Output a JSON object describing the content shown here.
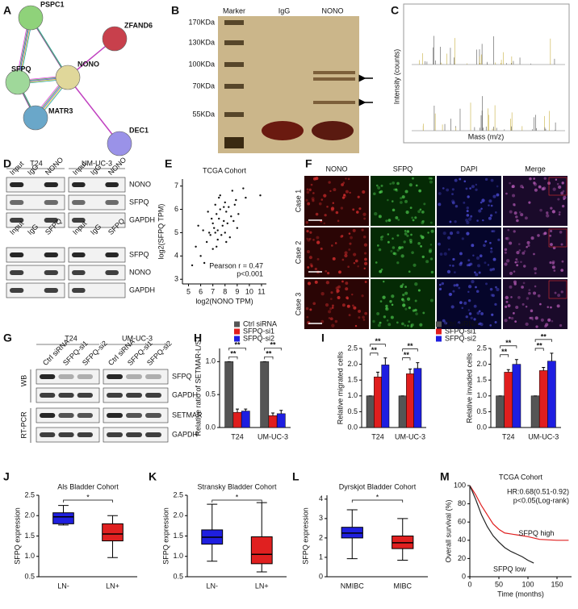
{
  "panels": {
    "labels": [
      "A",
      "B",
      "C",
      "D",
      "E",
      "F",
      "G",
      "H",
      "I",
      "J",
      "K",
      "L",
      "M"
    ]
  },
  "network": {
    "nodes": [
      "PSPC1",
      "ZFAND6",
      "NONO",
      "SFPQ",
      "MATR3",
      "DEC1"
    ]
  },
  "gel": {
    "lanes": [
      "Marker",
      "IgG",
      "NONO"
    ],
    "ladder": [
      "170KDa",
      "130KDa",
      "100KDa",
      "70KDa",
      "55KDa"
    ]
  },
  "spectrum": {
    "ylabel": "Intensity (counts)",
    "xlabel": "Mass (m/z)"
  },
  "coip": {
    "cells": [
      "T24",
      "UM-UC-3"
    ],
    "top": {
      "lanes": [
        "Input",
        "IgG",
        "NONO"
      ],
      "rows": [
        "NONO",
        "SFPQ",
        "GAPDH"
      ]
    },
    "bottom": {
      "lanes": [
        "Input",
        "IgG",
        "SFPQ"
      ],
      "rows": [
        "SFPQ",
        "NONO",
        "GAPDH"
      ]
    }
  },
  "if_stain": {
    "channels": [
      "NONO",
      "SFPQ",
      "DAPI",
      "Merge"
    ],
    "cases": [
      "Case 1",
      "Case 2",
      "Case 3"
    ]
  },
  "knockdown": {
    "cells": [
      "T24",
      "UM-UC-3"
    ],
    "lanes": [
      "Ctrl siRNA",
      "SFPQ-si1",
      "SFPQ-si2"
    ],
    "methods": [
      "WB",
      "RT-PCR"
    ],
    "rows": [
      "SFPQ",
      "GAPDH",
      "SETMAR",
      "GAPDH"
    ]
  },
  "chart_data": [
    {
      "type": "scatter",
      "title": "TCGA Cohort",
      "xlabel": "log2(NONO TPM)",
      "ylabel": "log2(SFPQ TPM)",
      "x": [
        7.5,
        7.8,
        8.1,
        7.2,
        7.0,
        8.3,
        6.8,
        7.6,
        8.5,
        7.9,
        7.3,
        8.0,
        6.5,
        7.1,
        8.8,
        7.4,
        8.2,
        6.9,
        7.7,
        9.1,
        6.2,
        7.5,
        8.6,
        9.5,
        9.7,
        10.9,
        5.3,
        6.3,
        5.6,
        6.0,
        7.0,
        8.4,
        9.0,
        7.6,
        8.0,
        7.2,
        6.6,
        5.8,
        8.7,
        7.9,
        7.3,
        6.7,
        8.9,
        7.4,
        8.1
      ],
      "values": [
        5.6,
        5.3,
        5.9,
        5.0,
        5.4,
        6.1,
        4.9,
        6.0,
        5.7,
        5.5,
        5.8,
        6.3,
        4.6,
        5.2,
        6.2,
        4.7,
        5.4,
        5.6,
        4.9,
        5.8,
        5.1,
        6.5,
        6.8,
        6.9,
        6.5,
        6.6,
        3.6,
        3.7,
        4.4,
        4.0,
        4.3,
        4.8,
        5.2,
        6.6,
        5.0,
        6.2,
        5.9,
        5.3,
        5.5,
        6.1,
        4.4,
        5.0,
        6.4,
        5.1,
        4.6
      ],
      "color": "#111111",
      "xlim": [
        4.5,
        11.4
      ],
      "xticks": [
        5,
        6,
        7,
        8,
        9,
        10,
        11
      ],
      "ylim": [
        2.8,
        7.3
      ],
      "yticks": [
        3,
        4,
        5,
        6,
        7
      ],
      "annotations": [
        "Pearson r = 0.47",
        "p<0.001"
      ]
    },
    {
      "type": "bar",
      "ylabel": "Relative ratio of SETMAR-L/S",
      "categories": [
        "T24",
        "UM-UC-3"
      ],
      "series": [
        {
          "name": "Ctrl siRNA",
          "color": "#555555",
          "values": [
            1,
            1
          ],
          "errors": [
            0,
            0
          ]
        },
        {
          "name": "SFPQ-si1",
          "color": "#e01e1e",
          "values": [
            0.23,
            0.18
          ],
          "errors": [
            0.05,
            0.04
          ]
        },
        {
          "name": "SFPQ-si2",
          "color": "#1e1ee0",
          "values": [
            0.25,
            0.21
          ],
          "errors": [
            0.03,
            0.05
          ]
        }
      ],
      "ylim": [
        0,
        1.2
      ],
      "yticks": [
        {
          "value": 0,
          "label": "0.0"
        },
        {
          "value": 0.5,
          "label": "0.5"
        },
        {
          "value": 1,
          "label": "1.0"
        }
      ],
      "legend": true,
      "annotations": [
        "**",
        "**",
        "**",
        "**"
      ]
    },
    {
      "type": "bar",
      "ylabel": "Relative migrated cells",
      "categories": [
        "T24",
        "UM-UC-3"
      ],
      "series": [
        {
          "name": "Ctrl siRNA",
          "color": "#555555",
          "values": [
            1,
            1
          ],
          "errors": [
            0,
            0
          ]
        },
        {
          "name": "SFPQ-si1",
          "color": "#e01e1e",
          "values": [
            1.6,
            1.7
          ],
          "errors": [
            0.15,
            0.15
          ]
        },
        {
          "name": "SFPQ-si2",
          "color": "#1e1ee0",
          "values": [
            1.98,
            1.87
          ],
          "errors": [
            0.22,
            0.18
          ]
        }
      ],
      "ylim": [
        0,
        2.5
      ],
      "yticks": [
        {
          "value": 0,
          "label": "0.0"
        },
        {
          "value": 0.5,
          "label": "0.5"
        },
        {
          "value": 1,
          "label": "1.0"
        },
        {
          "value": 1.5,
          "label": "1.5"
        },
        {
          "value": 2,
          "label": "2.0"
        },
        {
          "value": 2.5,
          "label": "2.5"
        }
      ],
      "legend": true,
      "annotations": [
        "**",
        "**",
        "**",
        "**"
      ]
    },
    {
      "type": "bar",
      "ylabel": "Relative invaded cells",
      "categories": [
        "T24",
        "UM-UC-3"
      ],
      "series": [
        {
          "color": "#555555",
          "values": [
            1,
            1
          ],
          "errors": [
            0,
            0
          ]
        },
        {
          "color": "#e01e1e",
          "values": [
            1.75,
            1.8
          ],
          "errors": [
            0.08,
            0.1
          ]
        },
        {
          "color": "#1e1ee0",
          "values": [
            2.0,
            2.1
          ],
          "errors": [
            0.15,
            0.25
          ]
        }
      ],
      "ylim": [
        0,
        2.5
      ],
      "yticks": [
        {
          "value": 0,
          "label": "0.0"
        },
        {
          "value": 0.5,
          "label": "0.5"
        },
        {
          "value": 1,
          "label": "1.0"
        },
        {
          "value": 1.5,
          "label": "1.5"
        },
        {
          "value": 2,
          "label": "2.0"
        },
        {
          "value": 2.5,
          "label": "2.5"
        }
      ],
      "annotations": [
        "**",
        "**",
        "**",
        "**"
      ]
    },
    {
      "type": "box",
      "title": "Als Bladder Cohort",
      "ylabel": "SFPQ expression",
      "categories": [
        "LN-",
        "LN+"
      ],
      "colors": [
        "#1f1fe0",
        "#e02020"
      ],
      "boxes": [
        {
          "min": 1.77,
          "q1": 1.8,
          "median": 1.97,
          "q3": 2.07,
          "max": 2.25
        },
        {
          "min": 0.97,
          "q1": 1.38,
          "median": 1.55,
          "q3": 1.8,
          "max": 2.0
        }
      ],
      "ylim": [
        0.5,
        2.5
      ],
      "yticks": [
        0.5,
        {
          "value": 1,
          "label": "1.0"
        },
        1.5,
        {
          "value": 2,
          "label": "2.0"
        },
        2.5
      ],
      "annotation": "*"
    },
    {
      "type": "box",
      "title": "Stransky Bladder Cohort",
      "ylabel": "SFPQ expression",
      "categories": [
        "LN-",
        "LN+"
      ],
      "colors": [
        "#1f1fe0",
        "#e02020"
      ],
      "boxes": [
        {
          "min": 0.88,
          "q1": 1.3,
          "median": 1.47,
          "q3": 1.65,
          "max": 2.28
        },
        {
          "min": 0.62,
          "q1": 0.82,
          "median": 1.05,
          "q3": 1.48,
          "max": 2.32
        }
      ],
      "ylim": [
        0.5,
        2.5
      ],
      "yticks": [
        0.5,
        {
          "value": 1,
          "label": "1.0"
        },
        1.5,
        {
          "value": 2,
          "label": "2.0"
        },
        2.5
      ],
      "annotation": "*"
    },
    {
      "type": "box",
      "title": "Dyrskjot Bladder Cohort",
      "ylabel": "SFPQ expression",
      "categories": [
        "NMIBC",
        "MIBC"
      ],
      "colors": [
        "#1f1fe0",
        "#e02020"
      ],
      "boxes": [
        {
          "min": 0.93,
          "q1": 2.0,
          "median": 2.25,
          "q3": 2.55,
          "max": 3.45
        },
        {
          "min": 0.85,
          "q1": 1.45,
          "median": 1.75,
          "q3": 2.1,
          "max": 3.0
        }
      ],
      "ylim": [
        0,
        4.2
      ],
      "yticks": [
        0,
        1,
        2,
        3,
        4
      ],
      "annotation": "*"
    },
    {
      "type": "line",
      "title": "TCGA Cohort",
      "xlabel": "Time (months)",
      "ylabel": "Overall survival (%)",
      "series": [
        {
          "name": "SFPQ high",
          "color": "#e02020",
          "x": [
            0,
            10,
            20,
            30,
            40,
            50,
            60,
            80,
            100,
            120,
            150,
            170
          ],
          "values": [
            100,
            90,
            78,
            68,
            58,
            52,
            48,
            46,
            44,
            41,
            40,
            40
          ]
        },
        {
          "name": "SFPQ low",
          "color": "#222222",
          "x": [
            0,
            10,
            20,
            30,
            40,
            50,
            60,
            70,
            80,
            90,
            100,
            110
          ],
          "values": [
            100,
            85,
            68,
            55,
            45,
            38,
            32,
            28,
            25,
            22,
            18,
            15
          ]
        }
      ],
      "xlim": [
        0,
        175
      ],
      "xticks": [
        0,
        50,
        100,
        150
      ],
      "ylim": [
        0,
        100
      ],
      "yticks": [
        0,
        20,
        40,
        60,
        80,
        100
      ],
      "annotations": [
        "HR:0.68(0.51-0.92)",
        "p<0.05(Log-rank)"
      ]
    }
  ]
}
